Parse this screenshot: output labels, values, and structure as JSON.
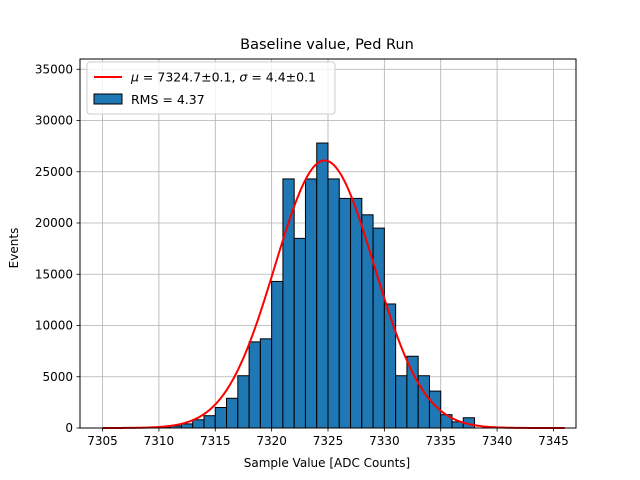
{
  "chart_data": {
    "type": "bar",
    "title": "Baseline value, Ped Run",
    "xlabel": "Sample Value [ADC Counts]",
    "ylabel": "Events",
    "xlim": [
      7303,
      7347
    ],
    "ylim": [
      0,
      36000
    ],
    "xticks": [
      7305,
      7310,
      7315,
      7320,
      7325,
      7330,
      7335,
      7340,
      7345
    ],
    "yticks": [
      0,
      5000,
      10000,
      15000,
      20000,
      25000,
      30000,
      35000
    ],
    "grid": true,
    "legend_position": "top-left",
    "histogram": {
      "bin_width": 1,
      "bin_starts": [
        7310,
        7311,
        7312,
        7313,
        7314,
        7315,
        7316,
        7317,
        7318,
        7319,
        7320,
        7321,
        7322,
        7323,
        7324,
        7325,
        7326,
        7327,
        7328,
        7329,
        7330,
        7331,
        7332,
        7333,
        7334,
        7335,
        7336,
        7337
      ],
      "values": [
        100,
        200,
        400,
        800,
        1200,
        2000,
        2900,
        5100,
        8400,
        8700,
        14300,
        24300,
        18500,
        24300,
        27800,
        24300,
        22400,
        22400,
        20800,
        19500,
        12100,
        5100,
        7000,
        5100,
        3600,
        1300,
        600,
        1000
      ],
      "label": "RMS = 4.37",
      "color": "#1f77b4",
      "edge_color": "#000000"
    },
    "fit": {
      "type": "gaussian",
      "label": "$\\mu = 7324.7\\pm0.1$, $\\sigma = 4.4\\pm0.1$",
      "mu": 7324.7,
      "sigma": 4.4,
      "amplitude": 26100,
      "x_range": [
        7305,
        7346
      ],
      "color": "#ff0000"
    }
  }
}
